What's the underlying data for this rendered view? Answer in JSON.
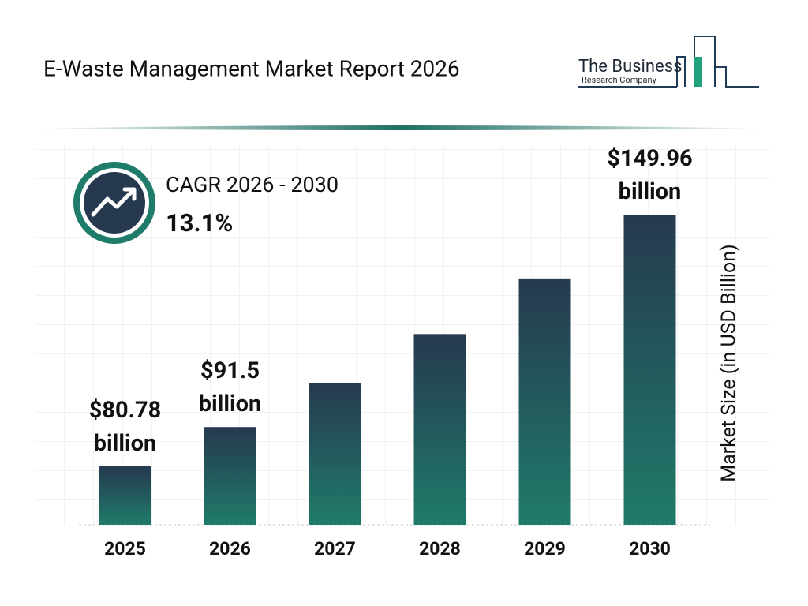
{
  "chart_data": {
    "type": "bar",
    "title": "E-Waste Management Market Report 2026",
    "brand": [
      "The Business",
      "Research Company"
    ],
    "cagr_label": "CAGR 2026 - 2030",
    "cagr_value": "13.1%",
    "y_label": "Market Size (in USD Billion)",
    "categories": [
      "2025",
      "2026",
      "2027",
      "2028",
      "2029",
      "2030"
    ],
    "values": [
      80.78,
      91.5,
      103.5,
      117.1,
      132.4,
      149.96
    ],
    "value_labels": [
      "$80.78 billion",
      "$91.5 billion",
      null,
      null,
      null,
      "$149.96 billion"
    ],
    "color": [
      "#26394f",
      "#1f7b6a"
    ],
    "grid": true
  }
}
